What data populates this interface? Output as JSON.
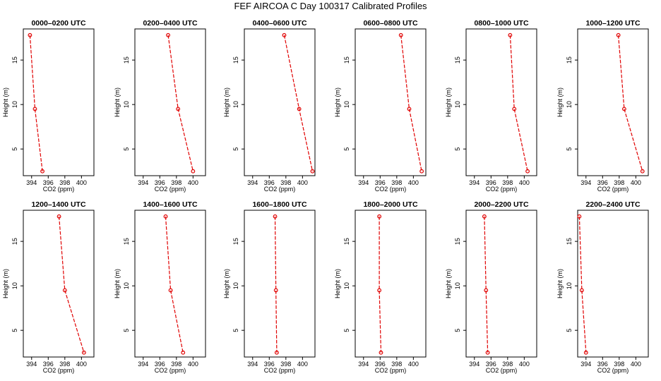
{
  "figure": {
    "title": "FEF AIRCOA C  Day 100317  Calibrated Profiles"
  },
  "colors": {
    "series": "#e00000",
    "axis": "#000000",
    "background": "#ffffff"
  },
  "chart_data": [
    {
      "type": "line",
      "title": "0000–0200 UTC",
      "xlabel": "CO2 (ppm)",
      "ylabel": "Height (m)",
      "xlim": [
        393,
        401.5
      ],
      "ylim": [
        2,
        18.5
      ],
      "xticks": [
        "394",
        "396",
        "398",
        "400"
      ],
      "yticks": [
        "5",
        "10",
        "15"
      ],
      "grid": false,
      "points": [
        {
          "x": 393.8,
          "y": 17.8
        },
        {
          "x": 394.4,
          "y": 9.5
        },
        {
          "x": 395.3,
          "y": 2.5
        }
      ]
    },
    {
      "type": "line",
      "title": "0200–0400 UTC",
      "xlabel": "CO2 (ppm)",
      "ylabel": "Height (m)",
      "xlim": [
        393,
        401.5
      ],
      "ylim": [
        2,
        18.5
      ],
      "xticks": [
        "394",
        "396",
        "398",
        "400"
      ],
      "yticks": [
        "5",
        "10",
        "15"
      ],
      "grid": false,
      "points": [
        {
          "x": 397.0,
          "y": 17.8
        },
        {
          "x": 398.2,
          "y": 9.5
        },
        {
          "x": 400.0,
          "y": 2.5
        }
      ]
    },
    {
      "type": "line",
      "title": "0400–0600 UTC",
      "xlabel": "CO2 (ppm)",
      "ylabel": "Height (m)",
      "xlim": [
        393,
        401.5
      ],
      "ylim": [
        2,
        18.5
      ],
      "xticks": [
        "394",
        "396",
        "398",
        "400"
      ],
      "yticks": [
        "5",
        "10",
        "15"
      ],
      "grid": false,
      "points": [
        {
          "x": 397.8,
          "y": 17.8
        },
        {
          "x": 399.6,
          "y": 9.5
        },
        {
          "x": 401.2,
          "y": 2.5
        }
      ]
    },
    {
      "type": "line",
      "title": "0600–0800 UTC",
      "xlabel": "CO2 (ppm)",
      "ylabel": "Height (m)",
      "xlim": [
        393,
        401.5
      ],
      "ylim": [
        2,
        18.5
      ],
      "xticks": [
        "394",
        "396",
        "398",
        "400"
      ],
      "yticks": [
        "5",
        "10",
        "15"
      ],
      "grid": false,
      "points": [
        {
          "x": 398.5,
          "y": 17.8
        },
        {
          "x": 399.5,
          "y": 9.5
        },
        {
          "x": 401.0,
          "y": 2.5
        }
      ]
    },
    {
      "type": "line",
      "title": "0800–1000 UTC",
      "xlabel": "CO2 (ppm)",
      "ylabel": "Height (m)",
      "xlim": [
        393,
        401.5
      ],
      "ylim": [
        2,
        18.5
      ],
      "xticks": [
        "394",
        "396",
        "398",
        "400"
      ],
      "yticks": [
        "5",
        "10",
        "15"
      ],
      "grid": false,
      "points": [
        {
          "x": 398.3,
          "y": 17.8
        },
        {
          "x": 398.8,
          "y": 9.5
        },
        {
          "x": 400.4,
          "y": 2.5
        }
      ]
    },
    {
      "type": "line",
      "title": "1000–1200 UTC",
      "xlabel": "CO2 (ppm)",
      "ylabel": "Height (m)",
      "xlim": [
        393,
        401.5
      ],
      "ylim": [
        2,
        18.5
      ],
      "xticks": [
        "394",
        "396",
        "398",
        "400"
      ],
      "yticks": [
        "5",
        "10",
        "15"
      ],
      "grid": false,
      "points": [
        {
          "x": 397.9,
          "y": 17.8
        },
        {
          "x": 398.6,
          "y": 9.5
        },
        {
          "x": 400.8,
          "y": 2.5
        }
      ]
    },
    {
      "type": "line",
      "title": "1200–1400 UTC",
      "xlabel": "CO2 (ppm)",
      "ylabel": "Height (m)",
      "xlim": [
        393,
        401.5
      ],
      "ylim": [
        2,
        18.5
      ],
      "xticks": [
        "394",
        "396",
        "398",
        "400"
      ],
      "yticks": [
        "5",
        "10",
        "15"
      ],
      "grid": false,
      "points": [
        {
          "x": 397.3,
          "y": 17.8
        },
        {
          "x": 398.0,
          "y": 9.5
        },
        {
          "x": 400.3,
          "y": 2.5
        }
      ]
    },
    {
      "type": "line",
      "title": "1400–1600 UTC",
      "xlabel": "CO2 (ppm)",
      "ylabel": "Height (m)",
      "xlim": [
        393,
        401.5
      ],
      "ylim": [
        2,
        18.5
      ],
      "xticks": [
        "394",
        "396",
        "398",
        "400"
      ],
      "yticks": [
        "5",
        "10",
        "15"
      ],
      "grid": false,
      "points": [
        {
          "x": 396.7,
          "y": 17.8
        },
        {
          "x": 397.3,
          "y": 9.5
        },
        {
          "x": 398.8,
          "y": 2.5
        }
      ]
    },
    {
      "type": "line",
      "title": "1600–1800 UTC",
      "xlabel": "CO2 (ppm)",
      "ylabel": "Height (m)",
      "xlim": [
        393,
        401.5
      ],
      "ylim": [
        2,
        18.5
      ],
      "xticks": [
        "394",
        "396",
        "398",
        "400"
      ],
      "yticks": [
        "5",
        "10",
        "15"
      ],
      "grid": false,
      "points": [
        {
          "x": 396.7,
          "y": 17.8
        },
        {
          "x": 396.8,
          "y": 9.5
        },
        {
          "x": 396.9,
          "y": 2.5
        }
      ]
    },
    {
      "type": "line",
      "title": "1800–2000 UTC",
      "xlabel": "CO2 (ppm)",
      "ylabel": "Height (m)",
      "xlim": [
        393,
        401.5
      ],
      "ylim": [
        2,
        18.5
      ],
      "xticks": [
        "394",
        "396",
        "398",
        "400"
      ],
      "yticks": [
        "5",
        "10",
        "15"
      ],
      "grid": false,
      "points": [
        {
          "x": 395.9,
          "y": 17.8
        },
        {
          "x": 395.9,
          "y": 9.5
        },
        {
          "x": 396.1,
          "y": 2.5
        }
      ]
    },
    {
      "type": "line",
      "title": "2000–2200 UTC",
      "xlabel": "CO2 (ppm)",
      "ylabel": "Height (m)",
      "xlim": [
        393,
        401.5
      ],
      "ylim": [
        2,
        18.5
      ],
      "xticks": [
        "394",
        "396",
        "398",
        "400"
      ],
      "yticks": [
        "5",
        "10",
        "15"
      ],
      "grid": false,
      "points": [
        {
          "x": 395.2,
          "y": 17.8
        },
        {
          "x": 395.4,
          "y": 9.5
        },
        {
          "x": 395.6,
          "y": 2.5
        }
      ]
    },
    {
      "type": "line",
      "title": "2200–2400 UTC",
      "xlabel": "CO2 (ppm)",
      "ylabel": "Height (m)",
      "xlim": [
        393,
        401.5
      ],
      "ylim": [
        2,
        18.5
      ],
      "xticks": [
        "394",
        "396",
        "398",
        "400"
      ],
      "yticks": [
        "5",
        "10",
        "15"
      ],
      "grid": false,
      "points": [
        {
          "x": 393.2,
          "y": 17.8
        },
        {
          "x": 393.5,
          "y": 9.5
        },
        {
          "x": 394.0,
          "y": 2.5
        }
      ]
    }
  ]
}
